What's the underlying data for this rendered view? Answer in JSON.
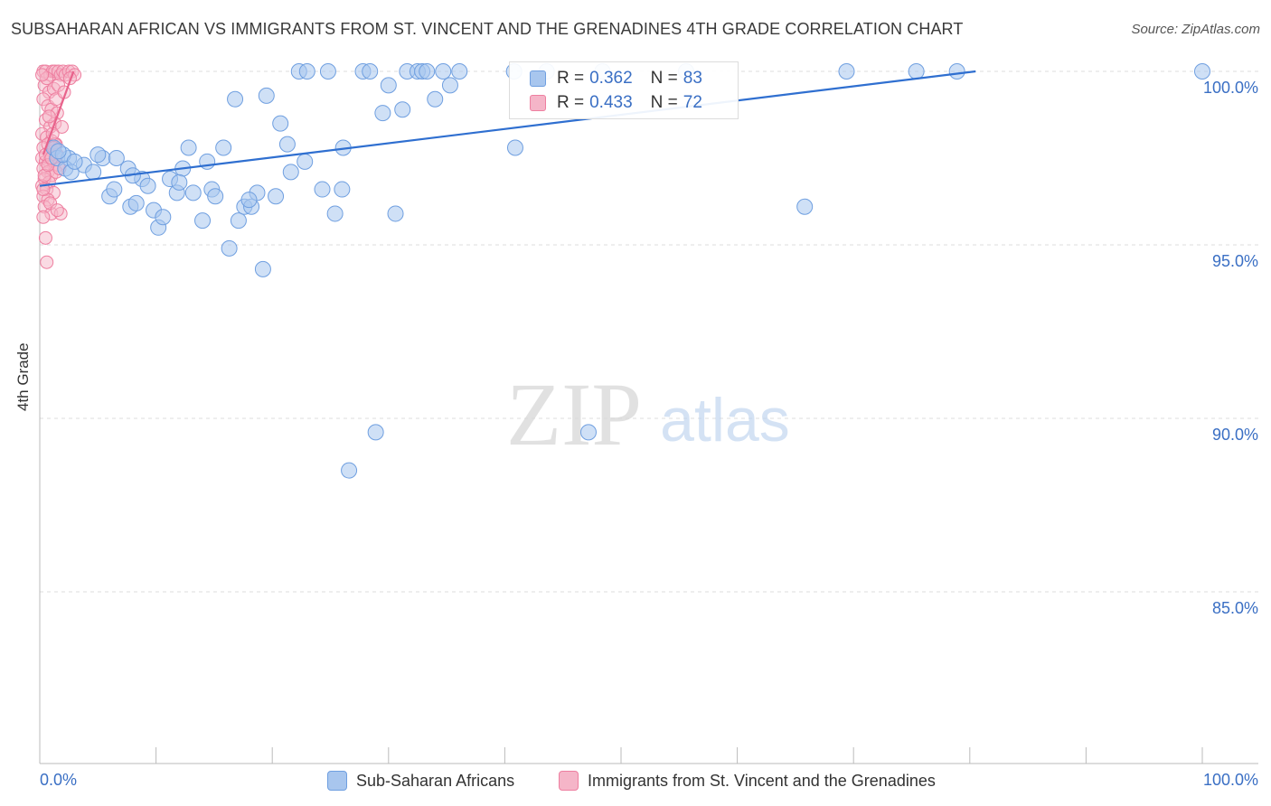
{
  "title": "SUBSAHARAN AFRICAN VS IMMIGRANTS FROM ST. VINCENT AND THE GRENADINES 4TH GRADE CORRELATION CHART",
  "source": "Source: ZipAtlas.com",
  "watermark": {
    "zip": "ZIP",
    "atlas": "atlas"
  },
  "colors": {
    "blue_fill": "#a8c6ee",
    "blue_stroke": "#6f9fe0",
    "blue_line": "#2f6fd0",
    "pink_fill": "#f5b5c8",
    "pink_stroke": "#ee7fa0",
    "pink_line": "#e8628b",
    "axis_text": "#3a6fc4",
    "grid": "#dddddd"
  },
  "legend": {
    "rows": [
      {
        "r_label": "R = ",
        "r_value": "0.362",
        "n_label": "N = ",
        "n_value": "83"
      },
      {
        "r_label": "R = ",
        "r_value": "0.433",
        "n_label": "N = ",
        "n_value": "72"
      }
    ]
  },
  "bottom_legend": {
    "series1": "Sub-Saharan Africans",
    "series2": "Immigrants from St. Vincent and the Grenadines"
  },
  "chart_data": {
    "type": "scatter",
    "title": "SUBSAHARAN AFRICAN VS IMMIGRANTS FROM ST. VINCENT AND THE GRENADINES 4TH GRADE CORRELATION CHART",
    "xlabel": "",
    "ylabel": "4th Grade",
    "xlim": [
      0,
      100
    ],
    "ylim": [
      80.5,
      100.5
    ],
    "x_tick_labels": [
      "0.0%",
      "100.0%"
    ],
    "y_ticks": [
      100,
      95,
      90,
      85
    ],
    "y_tick_labels": [
      "100.0%",
      "95.0%",
      "90.0%",
      "85.0%"
    ],
    "grid": true,
    "series": [
      {
        "name": "Sub-Saharan Africans",
        "color": "#a8c6ee",
        "r": 0.362,
        "n": 83,
        "trend": {
          "x": [
            0,
            80.5
          ],
          "y": [
            96.7,
            100.0
          ]
        },
        "points": [
          [
            1.2,
            97.8
          ],
          [
            1.5,
            97.5
          ],
          [
            2.5,
            97.5
          ],
          [
            2.2,
            97.2
          ],
          [
            2.7,
            97.1
          ],
          [
            3.8,
            97.3
          ],
          [
            4.6,
            97.1
          ],
          [
            5.4,
            97.5
          ],
          [
            6.0,
            96.4
          ],
          [
            6.4,
            96.6
          ],
          [
            6.6,
            97.5
          ],
          [
            7.6,
            97.2
          ],
          [
            7.8,
            96.1
          ],
          [
            8.3,
            96.2
          ],
          [
            8.8,
            96.9
          ],
          [
            9.3,
            96.7
          ],
          [
            9.8,
            96.0
          ],
          [
            10.2,
            95.5
          ],
          [
            10.6,
            95.8
          ],
          [
            11.2,
            96.9
          ],
          [
            11.8,
            96.5
          ],
          [
            12.3,
            97.2
          ],
          [
            12.8,
            97.8
          ],
          [
            13.2,
            96.5
          ],
          [
            14.0,
            95.7
          ],
          [
            14.4,
            97.4
          ],
          [
            14.8,
            96.6
          ],
          [
            15.1,
            96.4
          ],
          [
            15.8,
            97.8
          ],
          [
            16.3,
            94.9
          ],
          [
            16.8,
            99.2
          ],
          [
            17.1,
            95.7
          ],
          [
            17.6,
            96.1
          ],
          [
            18.2,
            96.1
          ],
          [
            18.7,
            96.5
          ],
          [
            19.2,
            94.3
          ],
          [
            19.5,
            99.3
          ],
          [
            20.3,
            96.4
          ],
          [
            20.7,
            98.5
          ],
          [
            21.3,
            97.9
          ],
          [
            21.6,
            97.1
          ],
          [
            22.3,
            100.0
          ],
          [
            22.8,
            97.4
          ],
          [
            23.0,
            100.0
          ],
          [
            24.3,
            96.6
          ],
          [
            24.8,
            100.0
          ],
          [
            25.4,
            95.9
          ],
          [
            26.1,
            97.8
          ],
          [
            26.6,
            88.5
          ],
          [
            27.8,
            100.0
          ],
          [
            28.4,
            100.0
          ],
          [
            28.9,
            89.6
          ],
          [
            29.5,
            98.8
          ],
          [
            30.0,
            99.6
          ],
          [
            30.6,
            95.9
          ],
          [
            31.2,
            98.9
          ],
          [
            31.6,
            100.0
          ],
          [
            32.5,
            100.0
          ],
          [
            32.9,
            100.0
          ],
          [
            33.3,
            100.0
          ],
          [
            34.0,
            99.2
          ],
          [
            34.7,
            100.0
          ],
          [
            35.3,
            99.6
          ],
          [
            36.1,
            100.0
          ],
          [
            40.8,
            100.0
          ],
          [
            40.9,
            97.8
          ],
          [
            43.6,
            100.0
          ],
          [
            47.2,
            89.6
          ],
          [
            48.4,
            100.0
          ],
          [
            55.6,
            100.0
          ],
          [
            65.8,
            96.1
          ],
          [
            69.4,
            100.0
          ],
          [
            75.4,
            100.0
          ],
          [
            78.9,
            100.0
          ],
          [
            100.0,
            100.0
          ],
          [
            2.0,
            97.6
          ],
          [
            3.0,
            97.4
          ],
          [
            5.0,
            97.6
          ],
          [
            8.0,
            97.0
          ],
          [
            12.0,
            96.8
          ],
          [
            18.0,
            96.3
          ],
          [
            26.0,
            96.6
          ],
          [
            1.6,
            97.7
          ]
        ]
      },
      {
        "name": "Immigrants from St. Vincent and the Grenadines",
        "color": "#f5b5c8",
        "r": 0.433,
        "n": 72,
        "trend": {
          "x": [
            0.3,
            2.9
          ],
          "y": [
            97.6,
            100.0
          ]
        },
        "points": [
          [
            0.3,
            100.0
          ],
          [
            0.5,
            100.0
          ],
          [
            0.9,
            99.9
          ],
          [
            1.1,
            100.0
          ],
          [
            1.3,
            100.0
          ],
          [
            1.6,
            100.0
          ],
          [
            1.8,
            99.9
          ],
          [
            2.0,
            100.0
          ],
          [
            2.2,
            99.9
          ],
          [
            2.5,
            100.0
          ],
          [
            2.8,
            100.0
          ],
          [
            3.0,
            99.9
          ],
          [
            0.4,
            99.6
          ],
          [
            0.8,
            99.4
          ],
          [
            1.2,
            99.5
          ],
          [
            1.6,
            99.6
          ],
          [
            0.3,
            99.2
          ],
          [
            0.7,
            99.0
          ],
          [
            1.0,
            98.9
          ],
          [
            1.5,
            98.8
          ],
          [
            0.5,
            98.6
          ],
          [
            0.9,
            98.4
          ],
          [
            1.3,
            98.5
          ],
          [
            1.9,
            98.4
          ],
          [
            0.2,
            98.2
          ],
          [
            0.6,
            98.1
          ],
          [
            1.0,
            98.0
          ],
          [
            1.4,
            97.9
          ],
          [
            0.3,
            97.8
          ],
          [
            0.7,
            97.9
          ],
          [
            1.1,
            97.7
          ],
          [
            1.5,
            97.6
          ],
          [
            0.2,
            97.5
          ],
          [
            0.5,
            97.4
          ],
          [
            0.8,
            97.4
          ],
          [
            1.2,
            97.3
          ],
          [
            1.6,
            97.3
          ],
          [
            0.3,
            97.2
          ],
          [
            0.7,
            97.1
          ],
          [
            1.0,
            97.0
          ],
          [
            1.4,
            97.1
          ],
          [
            0.4,
            96.9
          ],
          [
            0.8,
            96.8
          ],
          [
            0.2,
            96.7
          ],
          [
            0.6,
            96.6
          ],
          [
            1.2,
            96.5
          ],
          [
            0.3,
            96.4
          ],
          [
            0.7,
            96.3
          ],
          [
            0.4,
            96.1
          ],
          [
            1.0,
            95.9
          ],
          [
            0.3,
            95.8
          ],
          [
            0.5,
            95.2
          ],
          [
            0.6,
            94.5
          ],
          [
            1.8,
            95.9
          ],
          [
            0.9,
            97.6
          ],
          [
            1.3,
            97.9
          ],
          [
            0.5,
            97.6
          ],
          [
            1.1,
            98.2
          ],
          [
            0.8,
            98.7
          ],
          [
            1.7,
            97.2
          ],
          [
            0.4,
            97.0
          ],
          [
            0.9,
            96.2
          ],
          [
            1.5,
            96.0
          ],
          [
            0.6,
            99.8
          ],
          [
            1.4,
            99.2
          ],
          [
            2.1,
            99.4
          ],
          [
            0.2,
            99.9
          ],
          [
            2.6,
            99.8
          ],
          [
            0.7,
            97.3
          ],
          [
            1.2,
            97.8
          ],
          [
            0.3,
            96.6
          ],
          [
            1.0,
            97.5
          ]
        ]
      }
    ]
  }
}
